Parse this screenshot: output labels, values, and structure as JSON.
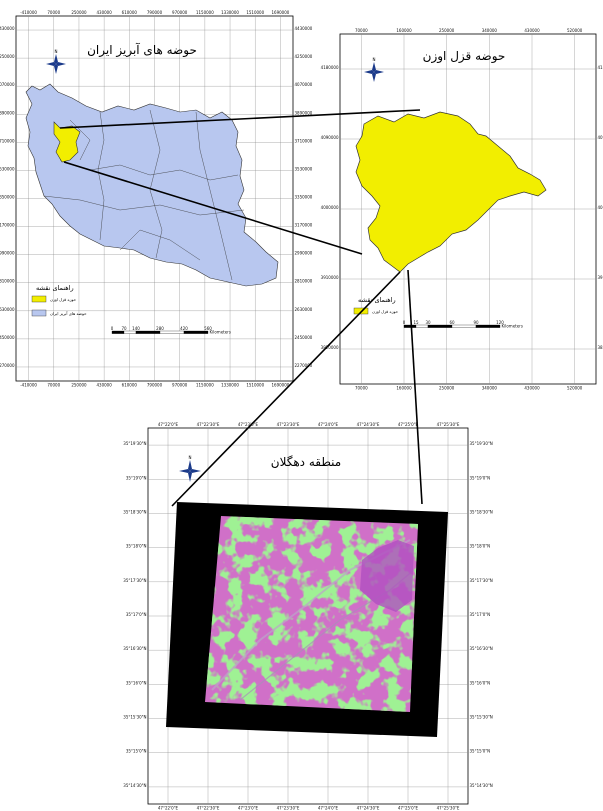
{
  "maps": {
    "iran": {
      "title": "حوضه های آبریز ایران",
      "legend_title": "راهنمای نقشه",
      "legend_items": [
        {
          "label": "حوزه قزل اوزن",
          "color": "#f2ee00"
        },
        {
          "label": "حوضه های آبریز ایران",
          "color": "#b8c7ef"
        }
      ],
      "scale_ticks": [
        "0",
        "70",
        "140",
        "280",
        "420",
        "560"
      ],
      "scale_unit": "Kilometers",
      "top_ticks": [
        "-410000",
        "70000",
        "250000",
        "430000",
        "610000",
        "790000",
        "970000",
        "1150000",
        "1330000",
        "1510000",
        "1690000"
      ],
      "bottom_ticks": [
        "-410000",
        "70000",
        "250000",
        "430000",
        "610000",
        "790000",
        "970000",
        "1150000",
        "1330000",
        "1510000",
        "1690000"
      ],
      "left_ticks": [
        "4430000",
        "4250000",
        "4070000",
        "3890000",
        "3710000",
        "3530000",
        "3350000",
        "3170000",
        "2990000",
        "2810000",
        "2630000",
        "2450000",
        "2270000"
      ],
      "right_ticks": [
        "4430000",
        "4250000",
        "4070000",
        "3890000",
        "3710000",
        "3530000",
        "3350000",
        "3170000",
        "2990000",
        "2810000",
        "2630000",
        "2450000",
        "2270000"
      ]
    },
    "qezel": {
      "title": "حوضه قزل اوزن",
      "legend_title": "راهنمای نقشه",
      "legend_items": [
        {
          "label": "حوزه قزل اوزن",
          "color": "#f2ee00"
        }
      ],
      "scale_ticks": [
        "0",
        "15",
        "30",
        "60",
        "90",
        "120"
      ],
      "scale_unit": "Kilometers",
      "top_ticks": [
        "70000",
        "160000",
        "250000",
        "340000",
        "430000",
        "520000"
      ],
      "bottom_ticks": [
        "70000",
        "160000",
        "250000",
        "340000",
        "430000",
        "520000"
      ],
      "left_ticks": [
        "4180000",
        "4090000",
        "4000000",
        "3910000",
        "3820000"
      ],
      "right_ticks": [
        "4180000",
        "4090000",
        "4000000",
        "3910000",
        "3820000"
      ]
    },
    "dehgolan": {
      "title": "منطقه دهگلان",
      "top_ticks": [
        "47°22'0\"E",
        "47°22'30\"E",
        "47°23'0\"E",
        "47°23'30\"E",
        "47°24'0\"E",
        "47°24'30\"E",
        "47°25'0\"E",
        "47°25'30\"E"
      ],
      "bottom_ticks": [
        "47°22'0\"E",
        "47°22'30\"E",
        "47°23'0\"E",
        "47°23'30\"E",
        "47°24'0\"E",
        "47°24'30\"E",
        "47°25'0\"E",
        "47°25'30\"E"
      ],
      "left_ticks": [
        "35°19'30\"N",
        "35°19'0\"N",
        "35°18'30\"N",
        "35°18'0\"N",
        "35°17'30\"N",
        "35°17'0\"N",
        "35°16'30\"N",
        "35°16'0\"N",
        "35°15'30\"N",
        "35°15'0\"N",
        "35°14'30\"N"
      ],
      "right_ticks": [
        "35°19'30\"N",
        "35°19'0\"N",
        "35°18'30\"N",
        "35°18'0\"N",
        "35°17'30\"N",
        "35°17'0\"N",
        "35°16'30\"N",
        "35°16'0\"N",
        "35°15'30\"N",
        "35°15'0\"N",
        "35°14'30\"N"
      ]
    }
  },
  "north_arrow_label": "N",
  "colors": {
    "basin_blue": "#b8c7ef",
    "qezel_yellow": "#f2ee00",
    "image_green": "#46e23c",
    "image_magenta": "#d070c8",
    "frame_black": "#000000"
  }
}
